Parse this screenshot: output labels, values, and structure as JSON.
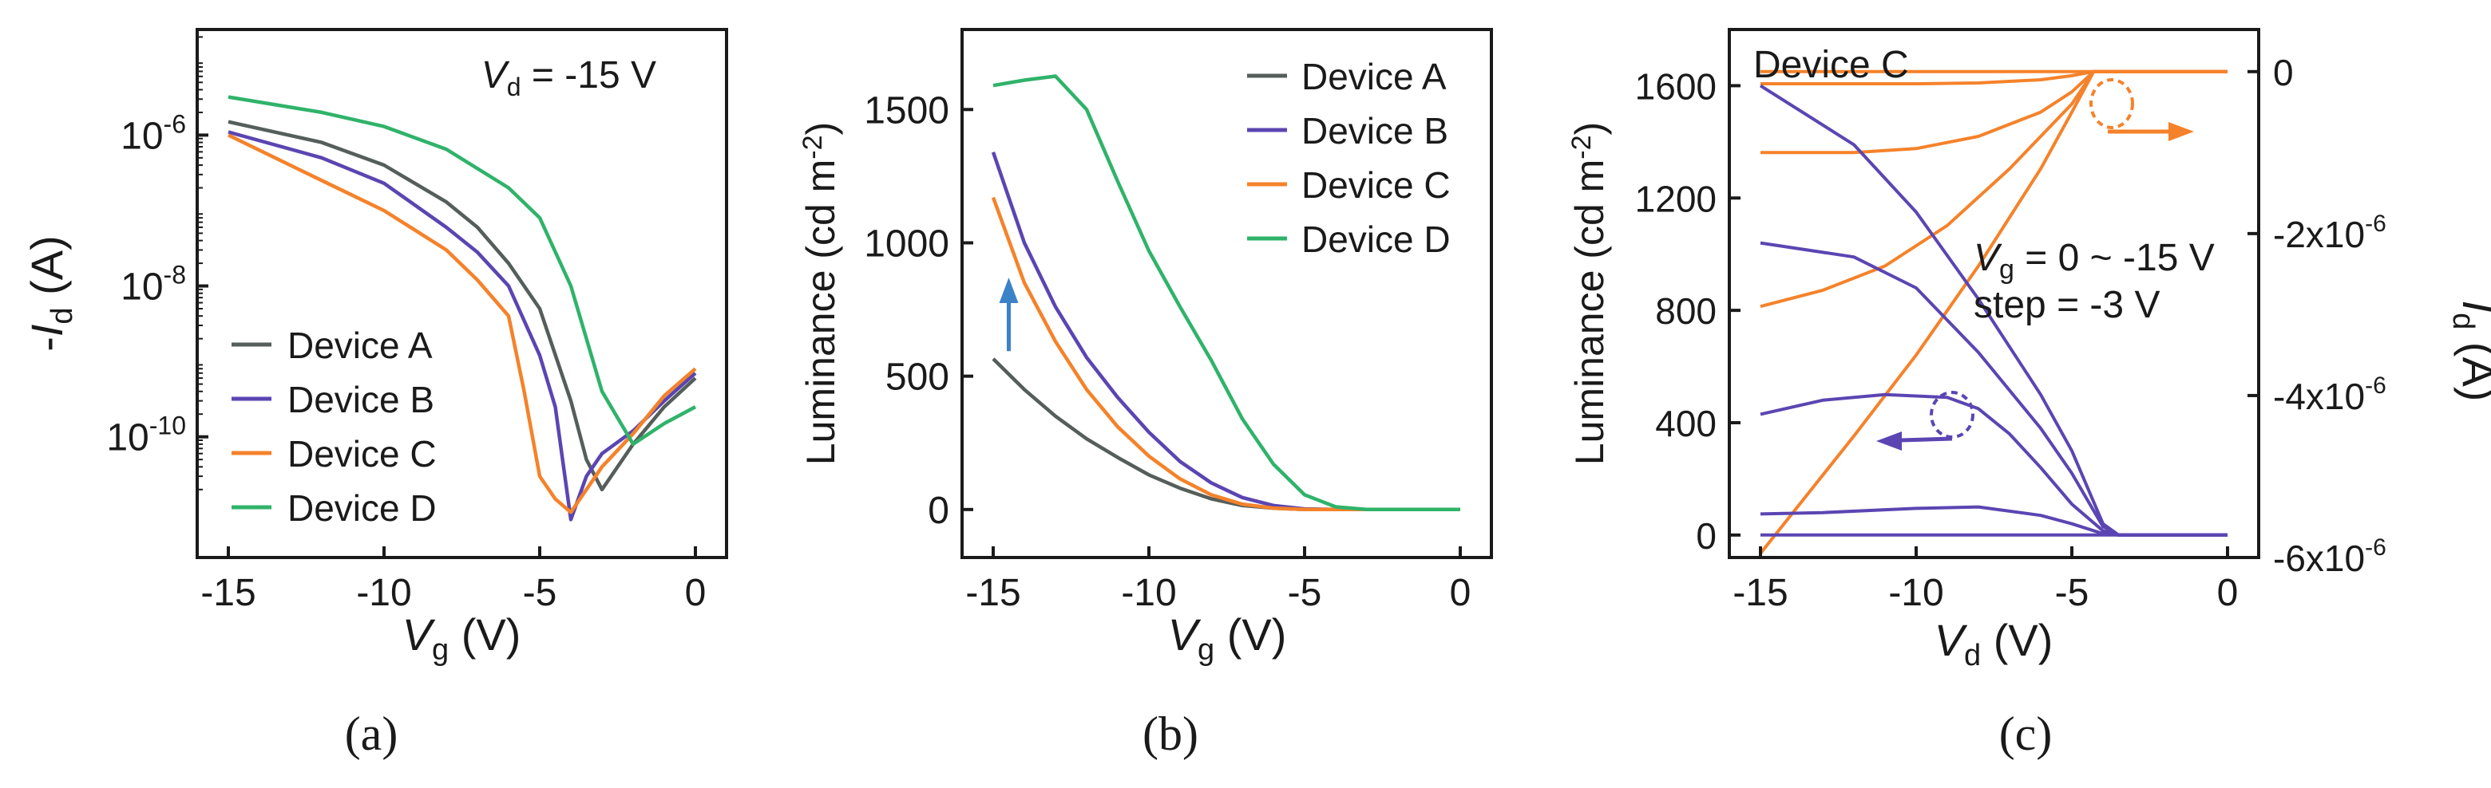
{
  "figure": {
    "panel_labels": [
      "(a)",
      "(b)",
      "(c)"
    ]
  },
  "colors": {
    "device_a": "#555e5a",
    "device_b": "#5b45b2",
    "device_c": "#f5822a",
    "device_d": "#2fb36a",
    "arrow_blue": "#3c82c8",
    "axis": "#1a1a1a"
  },
  "chart_data": [
    {
      "type": "line",
      "panel": "(a)",
      "y_scale": "log",
      "xlim": [
        -16,
        1
      ],
      "ylim": [
        -11.6,
        -4.6
      ],
      "xticks": [
        -15,
        -10,
        -5,
        0
      ],
      "xtick_labels": [
        "-15",
        "-10",
        "-5",
        "0"
      ],
      "yticks": [
        -6,
        -8,
        -10
      ],
      "ytick_labels": [
        {
          "base": "10",
          "exp": "-6"
        },
        {
          "base": "10",
          "exp": "-8"
        },
        {
          "base": "10",
          "exp": "-10"
        }
      ],
      "xlabel": {
        "var": "V",
        "sub": "g",
        "unit": " (V)"
      },
      "ylabel": {
        "prefix": "-",
        "var": "I",
        "sub": "d",
        "unit": " (A)"
      },
      "annotation": {
        "var": "V",
        "sub": "d",
        "text": " = -15 V"
      },
      "legend_position": "bottom-left",
      "series": [
        {
          "name": "Device A",
          "color_key": "device_a",
          "x": [
            -15,
            -12,
            -10,
            -8,
            -7,
            -6,
            -5,
            -4,
            -3.5,
            -3,
            -2,
            -1,
            0
          ],
          "y": [
            1.5e-06,
            8e-07,
            4e-07,
            1.3e-07,
            6e-08,
            2e-08,
            5e-09,
            3e-10,
            5e-11,
            2e-11,
            8e-11,
            2.5e-10,
            6e-10
          ]
        },
        {
          "name": "Device B",
          "color_key": "device_b",
          "x": [
            -15,
            -12,
            -10,
            -8,
            -7,
            -6,
            -5,
            -4.5,
            -4,
            -3.5,
            -3,
            -2,
            -1,
            0
          ],
          "y": [
            1.1e-06,
            5e-07,
            2.3e-07,
            6e-08,
            2.8e-08,
            1e-08,
            1.2e-09,
            2.5e-10,
            8e-12,
            3e-11,
            6e-11,
            1.2e-10,
            3e-10,
            7e-10
          ]
        },
        {
          "name": "Device C",
          "color_key": "device_c",
          "x": [
            -15,
            -12,
            -10,
            -8,
            -7,
            -6,
            -5.5,
            -5,
            -4.5,
            -4,
            -3,
            -2,
            -1,
            0
          ],
          "y": [
            1e-06,
            2.5e-07,
            1e-07,
            3e-08,
            1.2e-08,
            4e-09,
            4e-10,
            3e-11,
            1.5e-11,
            1e-11,
            4e-11,
            1.1e-10,
            3.5e-10,
            8e-10
          ]
        },
        {
          "name": "Device D",
          "color_key": "device_d",
          "x": [
            -15,
            -12,
            -10,
            -8,
            -6,
            -5,
            -4,
            -3,
            -2,
            -1,
            0
          ],
          "y": [
            3.2e-06,
            2e-06,
            1.3e-06,
            6.5e-07,
            2e-07,
            8e-08,
            1e-08,
            4e-10,
            8e-11,
            1.5e-10,
            2.5e-10
          ]
        }
      ]
    },
    {
      "type": "line",
      "panel": "(b)",
      "xlim": [
        -16,
        1
      ],
      "ylim": [
        -180,
        1800
      ],
      "xticks": [
        -15,
        -10,
        -5,
        0
      ],
      "xtick_labels": [
        "-15",
        "-10",
        "-5",
        "0"
      ],
      "yticks": [
        0,
        500,
        1000,
        1500
      ],
      "ytick_labels": [
        "0",
        "500",
        "1000",
        "1500"
      ],
      "xlabel": {
        "var": "V",
        "sub": "g",
        "unit": " (V)"
      },
      "ylabel": {
        "text": "Luminance (cd m",
        "sup": "-2",
        "close": ")"
      },
      "legend_position": "top-right",
      "arrow_annotation": {
        "x": -14.5,
        "y_from": 570,
        "y_to": 870,
        "color_key": "arrow_blue"
      },
      "series": [
        {
          "name": "Device A",
          "color_key": "device_a",
          "x": [
            -15,
            -14,
            -13,
            -12,
            -11,
            -10,
            -9,
            -8,
            -7,
            -6,
            -5,
            -4,
            -3,
            -2,
            -1,
            0
          ],
          "y": [
            565,
            450,
            350,
            265,
            195,
            130,
            80,
            40,
            15,
            5,
            0,
            0,
            0,
            0,
            0,
            0
          ]
        },
        {
          "name": "Device B",
          "color_key": "device_b",
          "x": [
            -15,
            -14,
            -13,
            -12,
            -11,
            -10,
            -9,
            -8,
            -7,
            -6,
            -5,
            -4,
            -3,
            -2,
            -1,
            0
          ],
          "y": [
            1340,
            1000,
            760,
            570,
            420,
            290,
            180,
            100,
            45,
            15,
            2,
            0,
            0,
            0,
            0,
            0
          ]
        },
        {
          "name": "Device C",
          "color_key": "device_c",
          "x": [
            -15,
            -14,
            -13,
            -12,
            -11,
            -10,
            -9,
            -8,
            -7,
            -6,
            -5,
            -4,
            -3,
            -2,
            -1,
            0
          ],
          "y": [
            1170,
            850,
            630,
            450,
            310,
            200,
            115,
            55,
            20,
            5,
            0,
            0,
            0,
            0,
            0,
            0
          ]
        },
        {
          "name": "Device D",
          "color_key": "device_d",
          "x": [
            -15,
            -14,
            -13,
            -12,
            -11,
            -10,
            -9,
            -8,
            -7,
            -6,
            -5,
            -4,
            -3,
            -2,
            -1,
            0
          ],
          "y": [
            1590,
            1610,
            1625,
            1500,
            1230,
            970,
            760,
            560,
            340,
            170,
            55,
            10,
            0,
            0,
            0,
            0
          ]
        }
      ]
    },
    {
      "type": "line",
      "panel": "(c)",
      "title": "Device C",
      "xlim": [
        -16,
        1
      ],
      "ylim": [
        -80,
        1800
      ],
      "xticks": [
        -15,
        -10,
        -5,
        0
      ],
      "xtick_labels": [
        "-15",
        "-10",
        "-5",
        "0"
      ],
      "yticks": [
        0,
        400,
        800,
        1200,
        1600
      ],
      "ytick_labels": [
        "0",
        "400",
        "800",
        "1200",
        "1600"
      ],
      "y2lim": [
        -6e-06,
        5.2e-07
      ],
      "y2ticks": [
        0,
        -2e-06,
        -4e-06,
        -6e-06
      ],
      "y2tick_labels": [
        {
          "text": "0"
        },
        {
          "base": "-2x10",
          "exp": "-6"
        },
        {
          "base": "-4x10",
          "exp": "-6"
        },
        {
          "base": "-6x10",
          "exp": "-6"
        }
      ],
      "xlabel": {
        "var": "V",
        "sub": "d",
        "unit": " (V)"
      },
      "ylabel": {
        "text": "Luminance (cd m",
        "sup": "-2",
        "close": ")"
      },
      "y2label": {
        "var": "I",
        "sub": "d",
        "unit": " (A)"
      },
      "annotations": [
        {
          "var": "V",
          "sub": "g",
          "text": " = 0 ~ -15 V"
        },
        {
          "text": "step = -3 V"
        }
      ],
      "luminance_series_color_key": "device_b",
      "current_series_color_key": "device_c",
      "luminance_series": [
        {
          "x": [
            -15,
            -12,
            -10,
            -8,
            -6,
            -5,
            -4,
            -3.5,
            -2,
            -1,
            0
          ],
          "y": [
            1600,
            1390,
            1150,
            840,
            500,
            300,
            40,
            0,
            0,
            0,
            0
          ]
        },
        {
          "x": [
            -15,
            -12,
            -10,
            -8,
            -6,
            -5,
            -4,
            -3.5,
            -2,
            -1,
            0
          ],
          "y": [
            1040,
            990,
            880,
            650,
            380,
            220,
            30,
            0,
            0,
            0,
            0
          ]
        },
        {
          "x": [
            -15,
            -13,
            -11,
            -9,
            -8,
            -7,
            -6,
            -5,
            -4,
            -3.5,
            -2,
            -1,
            0
          ],
          "y": [
            430,
            480,
            500,
            490,
            450,
            360,
            240,
            110,
            15,
            0,
            0,
            0,
            0
          ]
        },
        {
          "x": [
            -15,
            -13,
            -10,
            -8,
            -6,
            -5,
            -4,
            -3.5,
            -2,
            -1,
            0
          ],
          "y": [
            75,
            80,
            95,
            100,
            70,
            40,
            5,
            0,
            0,
            0,
            0
          ]
        },
        {
          "x": [
            -15,
            -10,
            -5,
            -3.5,
            -2,
            0
          ],
          "y": [
            0,
            0,
            0,
            0,
            0,
            0
          ]
        }
      ],
      "current_series": [
        {
          "x": [
            -15,
            -12,
            -10,
            -8,
            -6,
            -5,
            -4.3,
            -3,
            -1,
            0
          ],
          "y": [
            -5.95e-06,
            -4.5e-06,
            -3.5e-06,
            -2.4e-06,
            -1.2e-06,
            -5e-07,
            0,
            0,
            0,
            0
          ]
        },
        {
          "x": [
            -15,
            -13,
            -11,
            -9,
            -7,
            -6,
            -5,
            -4.3,
            -3,
            -1,
            0
          ],
          "y": [
            -2.9e-06,
            -2.7e-06,
            -2.4e-06,
            -1.9e-06,
            -1.2e-06,
            -8e-07,
            -4e-07,
            0,
            0,
            0,
            0
          ]
        },
        {
          "x": [
            -15,
            -12,
            -10,
            -8,
            -6,
            -5,
            -4.3,
            -3,
            -1,
            0
          ],
          "y": [
            -1e-06,
            -1e-06,
            -9.5e-07,
            -8e-07,
            -5e-07,
            -2.5e-07,
            0,
            0,
            0,
            0
          ]
        },
        {
          "x": [
            -15,
            -12,
            -10,
            -8,
            -6,
            -5,
            -4.3,
            -3,
            -1,
            0
          ],
          "y": [
            -1.5e-07,
            -1.5e-07,
            -1.5e-07,
            -1.4e-07,
            -1e-07,
            -5e-08,
            0,
            0,
            0,
            0
          ]
        },
        {
          "x": [
            -15,
            -10,
            -5,
            -4.3,
            -3,
            -1,
            0
          ],
          "y": [
            0,
            0,
            0,
            0,
            0,
            0,
            0
          ]
        }
      ]
    }
  ]
}
